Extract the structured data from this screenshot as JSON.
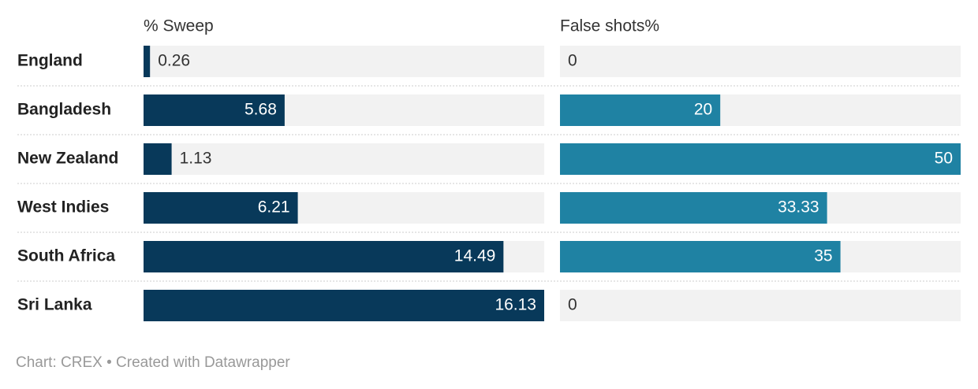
{
  "chart_data": {
    "type": "split-bar",
    "categories": [
      "England",
      "Bangladesh",
      "New Zealand",
      "West Indies",
      "South Africa",
      "Sri Lanka"
    ],
    "series": [
      {
        "name": "% Sweep",
        "color": "#08395a",
        "values": [
          0.26,
          5.68,
          1.13,
          6.21,
          14.49,
          16.13
        ],
        "xlim": [
          0,
          16.13
        ]
      },
      {
        "name": "False shots%",
        "color": "#1f82a3",
        "values": [
          0,
          20,
          50,
          33.33,
          35,
          0
        ],
        "xlim": [
          0,
          50
        ]
      }
    ],
    "footer": "Chart: CREX • Created with Datawrapper"
  }
}
